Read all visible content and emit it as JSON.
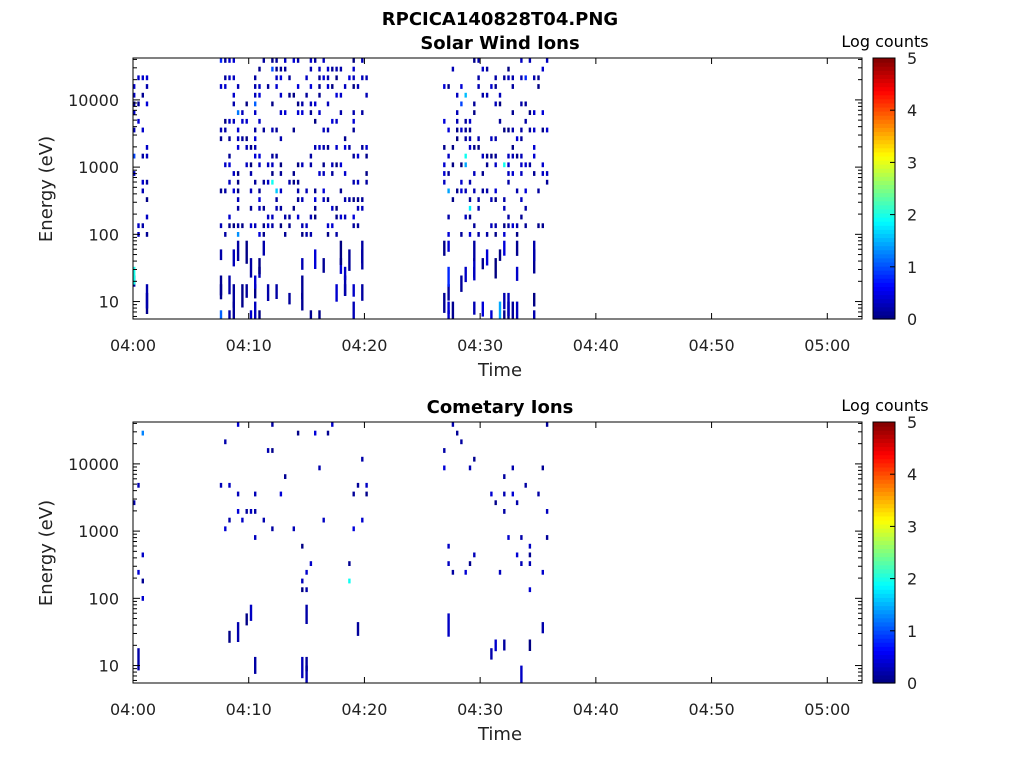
{
  "figure_title": "RPCICA140828T04.PNG",
  "chart_data": [
    {
      "type": "heatmap",
      "title": "Solar Wind Ions",
      "xlabel": "Time",
      "ylabel": "Energy (eV)",
      "x_ticks": [
        "04:00",
        "04:10",
        "04:20",
        "04:30",
        "04:40",
        "04:50",
        "05:00"
      ],
      "x_range_minutes": [
        0,
        63
      ],
      "y_scale": "log",
      "y_ticks": [
        "10",
        "100",
        "1000",
        "10000"
      ],
      "y_range": [
        5.5,
        42000
      ],
      "colorbar": {
        "label": "Log counts",
        "ticks": [
          "0",
          "1",
          "2",
          "3",
          "4",
          "5"
        ],
        "range": [
          0,
          5
        ],
        "colormap": "jet"
      },
      "active_intervals_minutes": [
        [
          0.0,
          1.2
        ],
        [
          7.5,
          20.2
        ],
        [
          26.8,
          36.0
        ]
      ],
      "data_note": "sparse counts, mostly 0-1 log counts, a few cells near 1.5-2",
      "seed": 7
    },
    {
      "type": "heatmap",
      "title": "Cometary Ions",
      "xlabel": "Time",
      "ylabel": "Energy (eV)",
      "x_ticks": [
        "04:00",
        "04:10",
        "04:20",
        "04:30",
        "04:40",
        "04:50",
        "05:00"
      ],
      "x_range_minutes": [
        0,
        63
      ],
      "y_scale": "log",
      "y_ticks": [
        "10",
        "100",
        "1000",
        "10000"
      ],
      "y_range": [
        5.5,
        42000
      ],
      "colorbar": {
        "label": "Log counts",
        "ticks": [
          "0",
          "1",
          "2",
          "3",
          "4",
          "5"
        ],
        "range": [
          0,
          5
        ],
        "colormap": "jet"
      },
      "active_intervals_minutes": [
        [
          0.0,
          1.2
        ],
        [
          7.5,
          20.2
        ],
        [
          26.8,
          36.0
        ]
      ],
      "data_note": "very sparse counts, mostly 0-0.5 log counts",
      "seed": 21
    }
  ]
}
